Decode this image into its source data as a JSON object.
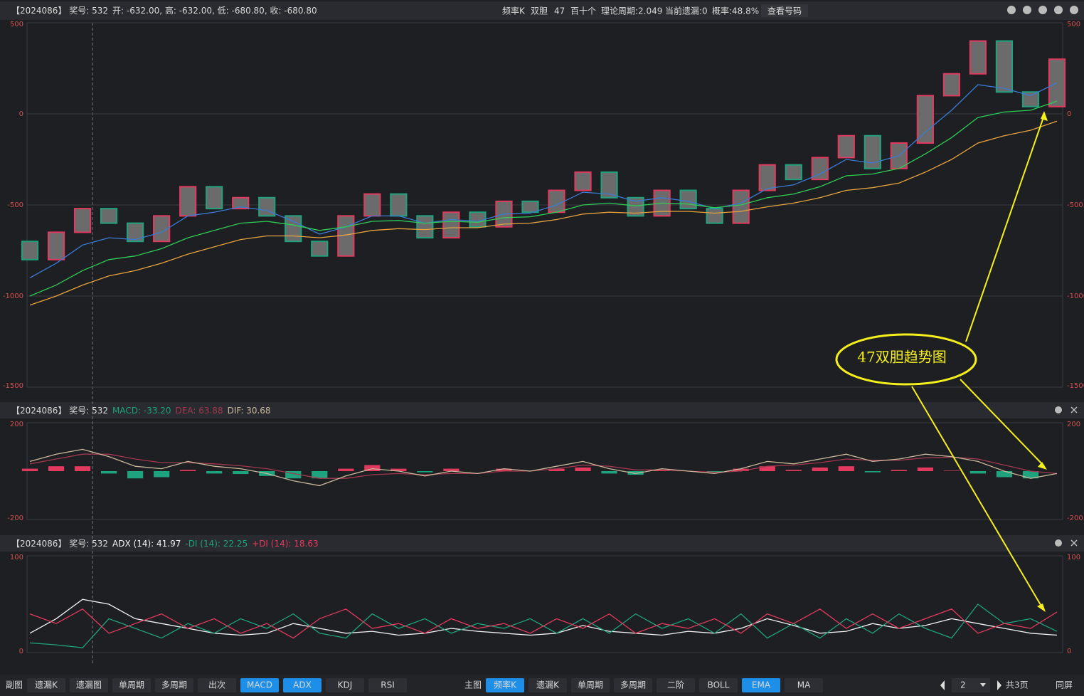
{
  "header": {
    "info": [
      "频率K",
      "双胆",
      "47",
      "百十个",
      "理论周期:2.049",
      "当前遗漏:0",
      "概率:48.8%"
    ],
    "button": "查看号码"
  },
  "annotation": "47双胆趋势图",
  "chart_data": [
    {
      "type": "candlestick",
      "title": "【2024086】 奖号: 532",
      "subtitle": "开: -632.00, 高: -632.00, 低: -680.80, 收: -680.80",
      "ylim": [
        -1500,
        500
      ],
      "yticks": [
        -1500,
        -1000,
        -500,
        0,
        500
      ],
      "grid": true,
      "up_color": "#e23a5e",
      "down_color": "#1fa37e",
      "open": [
        -700,
        -800,
        -650,
        -520,
        -600,
        -700,
        -560,
        -400,
        -520,
        -460,
        -560,
        -700,
        -780,
        -560,
        -440,
        -560,
        -680,
        -540,
        -620,
        -480,
        -540,
        -420,
        -320,
        -460,
        -560,
        -420,
        -520,
        -600,
        -420,
        -280,
        -360,
        -240,
        -120,
        -300,
        -160,
        100,
        220,
        400,
        120,
        40
      ],
      "close": [
        -800,
        -650,
        -520,
        -600,
        -700,
        -560,
        -400,
        -520,
        -460,
        -560,
        -700,
        -780,
        -560,
        -440,
        -560,
        -680,
        -540,
        -620,
        -480,
        -540,
        -420,
        -320,
        -460,
        -560,
        -420,
        -520,
        -600,
        -420,
        -280,
        -360,
        -240,
        -120,
        -300,
        -160,
        100,
        220,
        400,
        120,
        40,
        300
      ],
      "series": [
        {
          "color": "#3a7bd5",
          "values": [
            -900,
            -820,
            -720,
            -680,
            -690,
            -650,
            -560,
            -540,
            -510,
            -530,
            -590,
            -660,
            -620,
            -560,
            -560,
            -600,
            -580,
            -590,
            -550,
            -545,
            -500,
            -430,
            -440,
            -480,
            -460,
            -480,
            -520,
            -490,
            -410,
            -390,
            -330,
            -250,
            -270,
            -230,
            -100,
            20,
            160,
            140,
            100,
            170
          ]
        },
        {
          "color": "#2ecc55",
          "values": [
            -1000,
            -940,
            -860,
            -800,
            -780,
            -740,
            -680,
            -640,
            -600,
            -590,
            -610,
            -640,
            -620,
            -590,
            -585,
            -600,
            -590,
            -595,
            -570,
            -565,
            -540,
            -500,
            -490,
            -505,
            -490,
            -495,
            -515,
            -500,
            -460,
            -440,
            -400,
            -340,
            -330,
            -300,
            -220,
            -130,
            -20,
            10,
            20,
            70
          ]
        },
        {
          "color": "#e6a23c",
          "values": [
            -1050,
            -1000,
            -940,
            -890,
            -860,
            -820,
            -770,
            -730,
            -690,
            -670,
            -670,
            -680,
            -665,
            -640,
            -630,
            -635,
            -625,
            -625,
            -605,
            -600,
            -580,
            -550,
            -540,
            -545,
            -535,
            -535,
            -545,
            -535,
            -510,
            -490,
            -460,
            -420,
            -405,
            -380,
            -320,
            -250,
            -160,
            -120,
            -90,
            -40
          ]
        }
      ]
    },
    {
      "type": "combo",
      "title": "【2024086】 奖号: 532",
      "ylim": [
        -200,
        200
      ],
      "yticks": [
        -200,
        200
      ],
      "series": [
        {
          "kind": "bar",
          "label": "MACD: -33.20",
          "color": "#1fa37e",
          "positive_color": "#e23a5e",
          "values": [
            10,
            20,
            20,
            -10,
            -30,
            -25,
            5,
            -10,
            -12,
            -20,
            -30,
            -30,
            10,
            25,
            10,
            -5,
            10,
            0,
            10,
            0,
            10,
            15,
            -10,
            -15,
            5,
            0,
            -5,
            10,
            20,
            5,
            15,
            20,
            -5,
            5,
            15,
            2,
            -10,
            -25,
            -30,
            0
          ]
        },
        {
          "kind": "line",
          "label": "DEA: 63.88",
          "color": "#a0384f",
          "values": [
            30,
            50,
            70,
            70,
            50,
            35,
            35,
            30,
            22,
            10,
            -10,
            -30,
            -30,
            -15,
            -10,
            -15,
            -10,
            -10,
            0,
            0,
            10,
            25,
            20,
            5,
            5,
            0,
            -5,
            0,
            20,
            25,
            35,
            50,
            45,
            45,
            55,
            58,
            50,
            25,
            0,
            -10
          ]
        },
        {
          "kind": "line",
          "label": "DIF: 30.68",
          "color": "#c8b89a",
          "values": [
            40,
            70,
            90,
            60,
            20,
            10,
            40,
            20,
            10,
            -10,
            -40,
            -60,
            -20,
            10,
            0,
            -20,
            0,
            -10,
            10,
            0,
            20,
            40,
            10,
            -10,
            10,
            0,
            -10,
            10,
            40,
            30,
            50,
            70,
            40,
            50,
            70,
            60,
            40,
            0,
            -30,
            -10
          ]
        }
      ]
    },
    {
      "type": "line",
      "title": "【2024086】 奖号: 532",
      "ylim": [
        0,
        100
      ],
      "yticks": [
        0,
        100
      ],
      "series": [
        {
          "label": "ADX (14): 41.97",
          "color": "#f2f2f2",
          "values": [
            20,
            35,
            55,
            50,
            35,
            30,
            25,
            20,
            18,
            20,
            30,
            25,
            20,
            22,
            18,
            20,
            25,
            22,
            20,
            18,
            20,
            28,
            22,
            20,
            18,
            22,
            20,
            25,
            35,
            28,
            20,
            22,
            30,
            25,
            28,
            35,
            30,
            25,
            20,
            18
          ]
        },
        {
          "label": "-DI (14): 22.25",
          "color": "#1fa37e",
          "values": [
            10,
            8,
            5,
            35,
            25,
            15,
            30,
            20,
            35,
            25,
            40,
            20,
            15,
            40,
            25,
            35,
            20,
            30,
            25,
            35,
            20,
            35,
            20,
            40,
            25,
            35,
            20,
            40,
            15,
            30,
            15,
            35,
            20,
            40,
            25,
            15,
            50,
            30,
            35,
            22
          ]
        },
        {
          "label": "+DI (14): 18.63",
          "color": "#e23a5e",
          "values": [
            40,
            30,
            45,
            20,
            30,
            40,
            25,
            35,
            20,
            30,
            15,
            35,
            45,
            25,
            30,
            20,
            35,
            25,
            30,
            20,
            35,
            25,
            40,
            20,
            30,
            25,
            35,
            20,
            40,
            30,
            45,
            25,
            40,
            25,
            35,
            45,
            20,
            30,
            25,
            42
          ]
        }
      ]
    }
  ],
  "toolbar": {
    "sub_label": "副图",
    "sub_buttons": [
      {
        "label": "遗漏K",
        "active": false
      },
      {
        "label": "遗漏图",
        "active": false
      },
      {
        "label": "单周期",
        "active": false
      },
      {
        "label": "多周期",
        "active": false
      },
      {
        "label": "出次",
        "active": false
      },
      {
        "label": "MACD",
        "active": true
      },
      {
        "label": "ADX",
        "active": true
      },
      {
        "label": "KDJ",
        "active": false
      },
      {
        "label": "RSI",
        "active": false
      }
    ],
    "main_label": "主图",
    "main_buttons": [
      {
        "label": "频率K",
        "active": true
      },
      {
        "label": "遗漏K",
        "active": false
      },
      {
        "label": "单周期",
        "active": false
      },
      {
        "label": "多周期",
        "active": false
      },
      {
        "label": "二阶",
        "active": false
      },
      {
        "label": "BOLL",
        "active": false
      },
      {
        "label": "EMA",
        "active": true
      },
      {
        "label": "MA",
        "active": false
      }
    ],
    "page": "2",
    "pages": "共3页",
    "same_screen": "同屏"
  }
}
